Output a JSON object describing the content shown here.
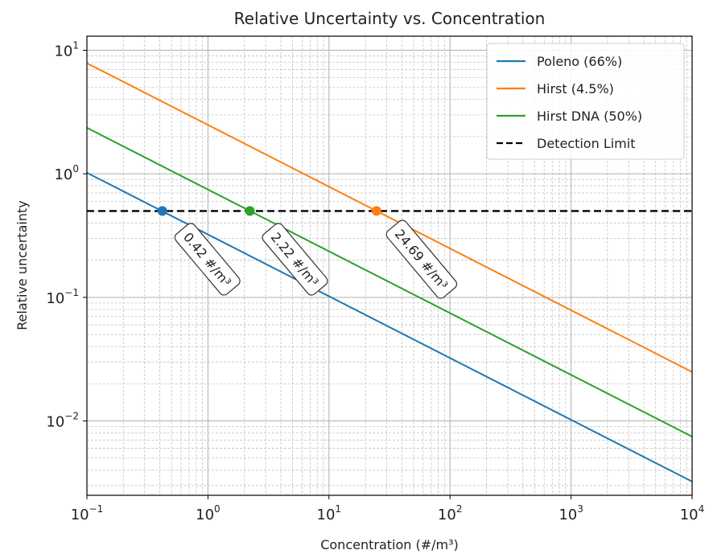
{
  "chart_data": {
    "type": "line",
    "title": "Relative Uncertainty vs. Concentration",
    "xlabel": "Concentration (#/m³)",
    "ylabel": "Relative uncertainty",
    "xscale": "log",
    "yscale": "log",
    "xlim": [
      0.1,
      10000
    ],
    "ylim": [
      0.0025,
      13
    ],
    "grid": true,
    "grid_minor": true,
    "legend_position": "top-right",
    "x_ticks": [
      {
        "value": 0.1,
        "base": "10",
        "exp": "−1"
      },
      {
        "value": 1,
        "base": "10",
        "exp": "0"
      },
      {
        "value": 10,
        "base": "10",
        "exp": "1"
      },
      {
        "value": 100,
        "base": "10",
        "exp": "2"
      },
      {
        "value": 1000,
        "base": "10",
        "exp": "3"
      },
      {
        "value": 10000,
        "base": "10",
        "exp": "4"
      }
    ],
    "y_ticks": [
      {
        "value": 0.01,
        "base": "10",
        "exp": "−2"
      },
      {
        "value": 0.1,
        "base": "10",
        "exp": "−1"
      },
      {
        "value": 1,
        "base": "10",
        "exp": "0"
      },
      {
        "value": 10,
        "base": "10",
        "exp": "1"
      }
    ],
    "series": [
      {
        "name": "Poleno (66%)",
        "color": "#1f77b4",
        "style": "solid",
        "x": [
          0.1,
          10000
        ],
        "y": [
          1.02,
          0.00323
        ]
      },
      {
        "name": "Hirst (4.5%)",
        "color": "#ff7f0e",
        "style": "solid",
        "x": [
          0.1,
          10000
        ],
        "y": [
          7.86,
          0.0249
        ]
      },
      {
        "name": "Hirst DNA (50%)",
        "color": "#2ca02c",
        "style": "solid",
        "x": [
          0.1,
          10000
        ],
        "y": [
          2.36,
          0.00746
        ]
      },
      {
        "name": "Detection Limit",
        "color": "#000000",
        "style": "dashed",
        "x": [
          0.1,
          10000
        ],
        "y": [
          0.5,
          0.5
        ]
      }
    ],
    "markers": [
      {
        "x": 0.42,
        "y": 0.5,
        "color": "#1f77b4"
      },
      {
        "x": 2.22,
        "y": 0.5,
        "color": "#2ca02c"
      },
      {
        "x": 24.69,
        "y": 0.5,
        "color": "#ff7f0e"
      }
    ],
    "annotations": [
      {
        "text": "0.42 #/m³",
        "x": 0.42,
        "y": 0.5
      },
      {
        "text": "2.22 #/m³",
        "x": 2.22,
        "y": 0.5
      },
      {
        "text": "24.69 #/m³",
        "x": 24.69,
        "y": 0.5
      }
    ]
  }
}
